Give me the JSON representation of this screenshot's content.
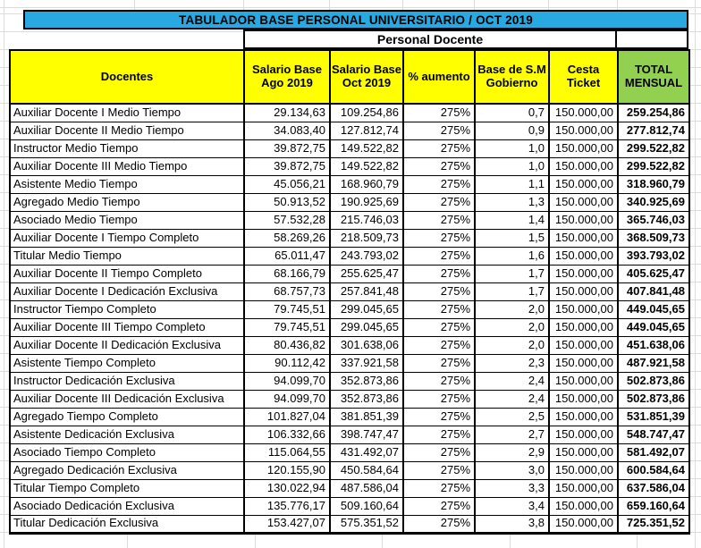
{
  "title": "TABULADOR BASE PERSONAL UNIVERSITARIO / OCT 2019",
  "subtitle": "Personal Docente",
  "headers": {
    "docentes": "Docentes",
    "salario_ago": "Salario Base\nAgo 2019",
    "salario_oct": "Salario Base\nOct 2019",
    "pct_aumento": "% aumento",
    "base_sm": "Base de S.M\nGobierno",
    "cesta_ticket": "Cesta Ticket",
    "total_mensual": "TOTAL\nMENSUAL"
  },
  "colors": {
    "title_bg": "#29A9E1",
    "header_bg": "#FFFF00",
    "total_bg": "#92D050",
    "border": "#000000",
    "gridline": "#DCDCDC"
  },
  "rows": [
    [
      "Auxiliar Docente I Medio Tiempo",
      "29.134,63",
      "109.254,86",
      "275%",
      "0,7",
      "150.000,00",
      "259.254,86"
    ],
    [
      "Auxiliar Docente II Medio Tiempo",
      "34.083,40",
      "127.812,74",
      "275%",
      "0,9",
      "150.000,00",
      "277.812,74"
    ],
    [
      "Instructor Medio Tiempo",
      "39.872,75",
      "149.522,82",
      "275%",
      "1,0",
      "150.000,00",
      "299.522,82"
    ],
    [
      "Auxiliar Docente III Medio Tiempo",
      "39.872,75",
      "149.522,82",
      "275%",
      "1,0",
      "150.000,00",
      "299.522,82"
    ],
    [
      "Asistente Medio Tiempo",
      "45.056,21",
      "168.960,79",
      "275%",
      "1,1",
      "150.000,00",
      "318.960,79"
    ],
    [
      "Agregado Medio Tiempo",
      "50.913,52",
      "190.925,69",
      "275%",
      "1,3",
      "150.000,00",
      "340.925,69"
    ],
    [
      "Asociado Medio Tiempo",
      "57.532,28",
      "215.746,03",
      "275%",
      "1,4",
      "150.000,00",
      "365.746,03"
    ],
    [
      "Auxiliar Docente I Tiempo Completo",
      "58.269,26",
      "218.509,73",
      "275%",
      "1,5",
      "150.000,00",
      "368.509,73"
    ],
    [
      "Titular Medio Tiempo",
      "65.011,47",
      "243.793,02",
      "275%",
      "1,6",
      "150.000,00",
      "393.793,02"
    ],
    [
      "Auxiliar Docente II Tiempo Completo",
      "68.166,79",
      "255.625,47",
      "275%",
      "1,7",
      "150.000,00",
      "405.625,47"
    ],
    [
      "Auxiliar Docente I Dedicación Exclusiva",
      "68.757,73",
      "257.841,48",
      "275%",
      "1,7",
      "150.000,00",
      "407.841,48"
    ],
    [
      "Instructor Tiempo Completo",
      "79.745,51",
      "299.045,65",
      "275%",
      "2,0",
      "150.000,00",
      "449.045,65"
    ],
    [
      "Auxiliar Docente III Tiempo Completo",
      "79.745,51",
      "299.045,65",
      "275%",
      "2,0",
      "150.000,00",
      "449.045,65"
    ],
    [
      "Auxiliar Docente II Dedicación Exclusiva",
      "80.436,82",
      "301.638,06",
      "275%",
      "2,0",
      "150.000,00",
      "451.638,06"
    ],
    [
      "Asistente Tiempo Completo",
      "90.112,42",
      "337.921,58",
      "275%",
      "2,3",
      "150.000,00",
      "487.921,58"
    ],
    [
      "Instructor Dedicación Exclusiva",
      "94.099,70",
      "352.873,86",
      "275%",
      "2,4",
      "150.000,00",
      "502.873,86"
    ],
    [
      "Auxiliar Docente III Dedicación Exclusiva",
      "94.099,70",
      "352.873,86",
      "275%",
      "2,4",
      "150.000,00",
      "502.873,86"
    ],
    [
      "Agregado Tiempo Completo",
      "101.827,04",
      "381.851,39",
      "275%",
      "2,5",
      "150.000,00",
      "531.851,39"
    ],
    [
      "Asistente Dedicación Exclusiva",
      "106.332,66",
      "398.747,47",
      "275%",
      "2,7",
      "150.000,00",
      "548.747,47"
    ],
    [
      "Asociado Tiempo Completo",
      "115.064,55",
      "431.492,07",
      "275%",
      "2,9",
      "150.000,00",
      "581.492,07"
    ],
    [
      "Agregado Dedicación Exclusiva",
      "120.155,90",
      "450.584,64",
      "275%",
      "3,0",
      "150.000,00",
      "600.584,64"
    ],
    [
      "Titular Tiempo Completo",
      "130.022,94",
      "487.586,04",
      "275%",
      "3,3",
      "150.000,00",
      "637.586,04"
    ],
    [
      "Asociado Dedicación Exclusiva",
      "135.776,17",
      "509.160,64",
      "275%",
      "3,4",
      "150.000,00",
      "659.160,64"
    ],
    [
      "Titular Dedicación Exclusiva",
      "153.427,07",
      "575.351,52",
      "275%",
      "3,8",
      "150.000,00",
      "725.351,52"
    ]
  ]
}
